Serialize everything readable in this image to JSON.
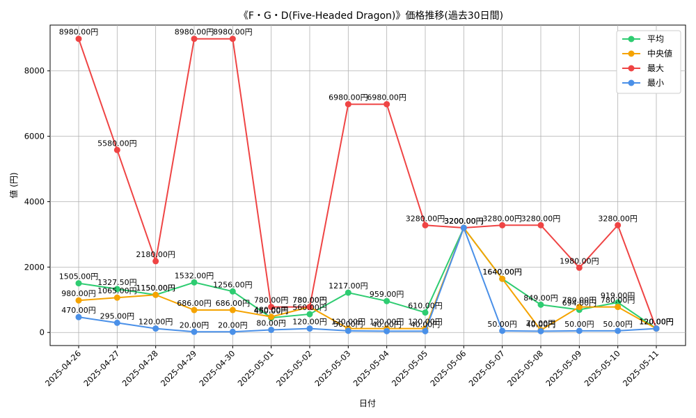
{
  "chart_data": {
    "type": "line",
    "title": "《F・G・D(Five-Headed Dragon)》価格推移(過去30日間)",
    "xlabel": "日付",
    "ylabel": "値 (円)",
    "ylim": [
      -400,
      9400
    ],
    "yticks": [
      0,
      2000,
      4000,
      6000,
      8000
    ],
    "grid": true,
    "legend_position": "top-right",
    "categories": [
      "2025-04-26",
      "2025-04-27",
      "2025-04-28",
      "2025-04-29",
      "2025-04-30",
      "2025-05-01",
      "2025-05-02",
      "2025-05-03",
      "2025-05-04",
      "2025-05-05",
      "2025-05-06",
      "2025-05-07",
      "2025-05-08",
      "2025-05-09",
      "2025-05-10",
      "2025-05-11"
    ],
    "series": [
      {
        "name": "平均",
        "color": "#2ecc71",
        "values": [
          1505,
          1327.5,
          1150,
          1532,
          1256,
          450,
          560,
          1217,
          959,
          610,
          3200,
          1640,
          849,
          694,
          919,
          120
        ],
        "labels": [
          "1505.00円",
          "1327.50円",
          "1150.00円",
          "1532.00円",
          "1256.00円",
          "450.00円",
          "560.00円",
          "1217.00円",
          "959.00円",
          "610.00円",
          "3200.00円",
          "1640.00円",
          "849.00円",
          "694.00円",
          "919.00円",
          "120.00円"
        ]
      },
      {
        "name": "中央値",
        "color": "#f5a300",
        "values": [
          980,
          1065,
          1150,
          686,
          686,
          480,
          780,
          120,
          120,
          120,
          3200,
          1640,
          70,
          780,
          780,
          120
        ],
        "labels": [
          "980.00円",
          "1065.00円",
          "1150.00円",
          "686.00円",
          "686.00円",
          "480.00円",
          "780.00円",
          "120.00円",
          "120.00円",
          "120.00円",
          "3200.00円",
          "1640.00円",
          "70.00円",
          "780.00円",
          "780.00円",
          "120.00円"
        ]
      },
      {
        "name": "最大",
        "color": "#ef4444",
        "values": [
          8980,
          5580,
          2180,
          8980,
          8980,
          780,
          780,
          6980,
          6980,
          3280,
          3200,
          3280,
          3280,
          1980,
          3280,
          120
        ],
        "labels": [
          "8980.00円",
          "5580.00円",
          "2180.00円",
          "8980.00円",
          "8980.00円",
          "780.00円",
          "780.00円",
          "6980.00円",
          "6980.00円",
          "3280.00円",
          "3200.00円",
          "3280.00円",
          "3280.00円",
          "1980.00円",
          "3280.00円",
          "120.00円"
        ]
      },
      {
        "name": "最小",
        "color": "#4a90e8",
        "values": [
          470,
          295,
          120,
          20,
          20,
          80,
          120,
          50,
          40,
          40,
          3200,
          50,
          40,
          50,
          50,
          120
        ],
        "labels": [
          "470.00円",
          "295.00円",
          "120.00円",
          "20.00円",
          "20.00円",
          "80.00円",
          "120.00円",
          "50.00円",
          "40.00円",
          "40.00円",
          "3200.00円",
          "50.00円",
          "40.00円",
          "50.00円",
          "50.00円",
          "120.00円"
        ]
      }
    ]
  }
}
